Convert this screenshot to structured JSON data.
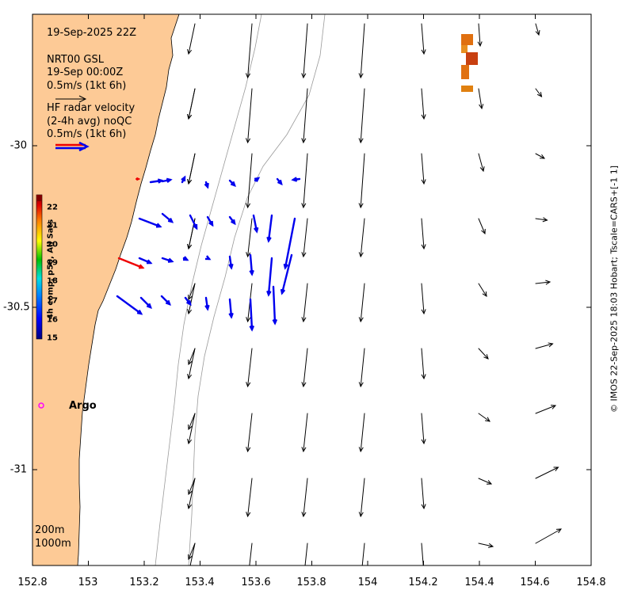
{
  "title": "19-Sep-2025 22Z",
  "model_legend": {
    "line1": "NRT00 GSL",
    "line2": "19-Sep 00:00Z",
    "line3": "0.5m/s (1kt 6h)"
  },
  "radar_legend": {
    "line1": "HF radar velocity",
    "line2": "(2-4h avg) noQC",
    "line3": "0.5m/s (1kt 6h)"
  },
  "colorbar": {
    "label": "4h comp, p50, All Sats",
    "ticks": [
      "22",
      "21",
      "20",
      "19",
      "18",
      "17",
      "16",
      "15"
    ]
  },
  "argo_label": "Argo",
  "isobaths": {
    "shallow": "200m",
    "deep": "1000m"
  },
  "credit": "© IMOS 22-Sep-2025 18:03 Hobart; Tscale=CARS+[-1 1]",
  "axes": {
    "x_ticks": [
      "152.8",
      "153",
      "153.2",
      "153.4",
      "153.6",
      "153.8",
      "154",
      "154.2",
      "154.4",
      "154.6",
      "154.8"
    ],
    "y_ticks": [
      "-30",
      "-30.5",
      "-31"
    ]
  },
  "colors": {
    "land": "#fdca96",
    "model_arrow": "#000000",
    "radar_arrow": "#0000ee",
    "radar_arrow_fast": "#ee0000",
    "argo": "#ff00ff",
    "sst_patch": "#e07010",
    "isobath": "#9a9a9a"
  }
}
